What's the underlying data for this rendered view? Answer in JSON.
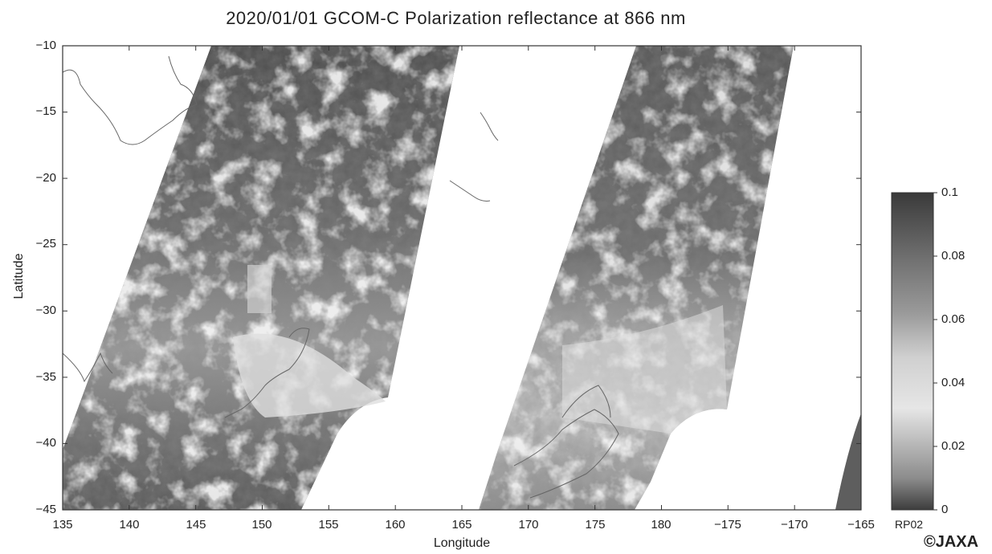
{
  "title": "2020/01/01  GCOM-C Polarization reflectance at 866 nm",
  "axes": {
    "xlabel": "Longitude",
    "ylabel": "Latitude",
    "xticks": [
      "135",
      "140",
      "145",
      "150",
      "155",
      "160",
      "165",
      "170",
      "175",
      "180",
      "−175",
      "−170",
      "−165"
    ],
    "yticks": [
      "−10",
      "−15",
      "−20",
      "−25",
      "−30",
      "−35",
      "−40",
      "−45"
    ]
  },
  "colorbar": {
    "unit": "RP02",
    "ticks": [
      "0.1",
      "0.08",
      "0.06",
      "0.04",
      "0.02",
      "0"
    ],
    "range": [
      0,
      0.1
    ],
    "colors": [
      "#3a3a3a",
      "#6e6e6e",
      "#9a9a9a",
      "#e6e6e6",
      "#bdbdbd",
      "#8c8c8c",
      "#3d3d3d"
    ]
  },
  "copyright": "©JAXA"
}
